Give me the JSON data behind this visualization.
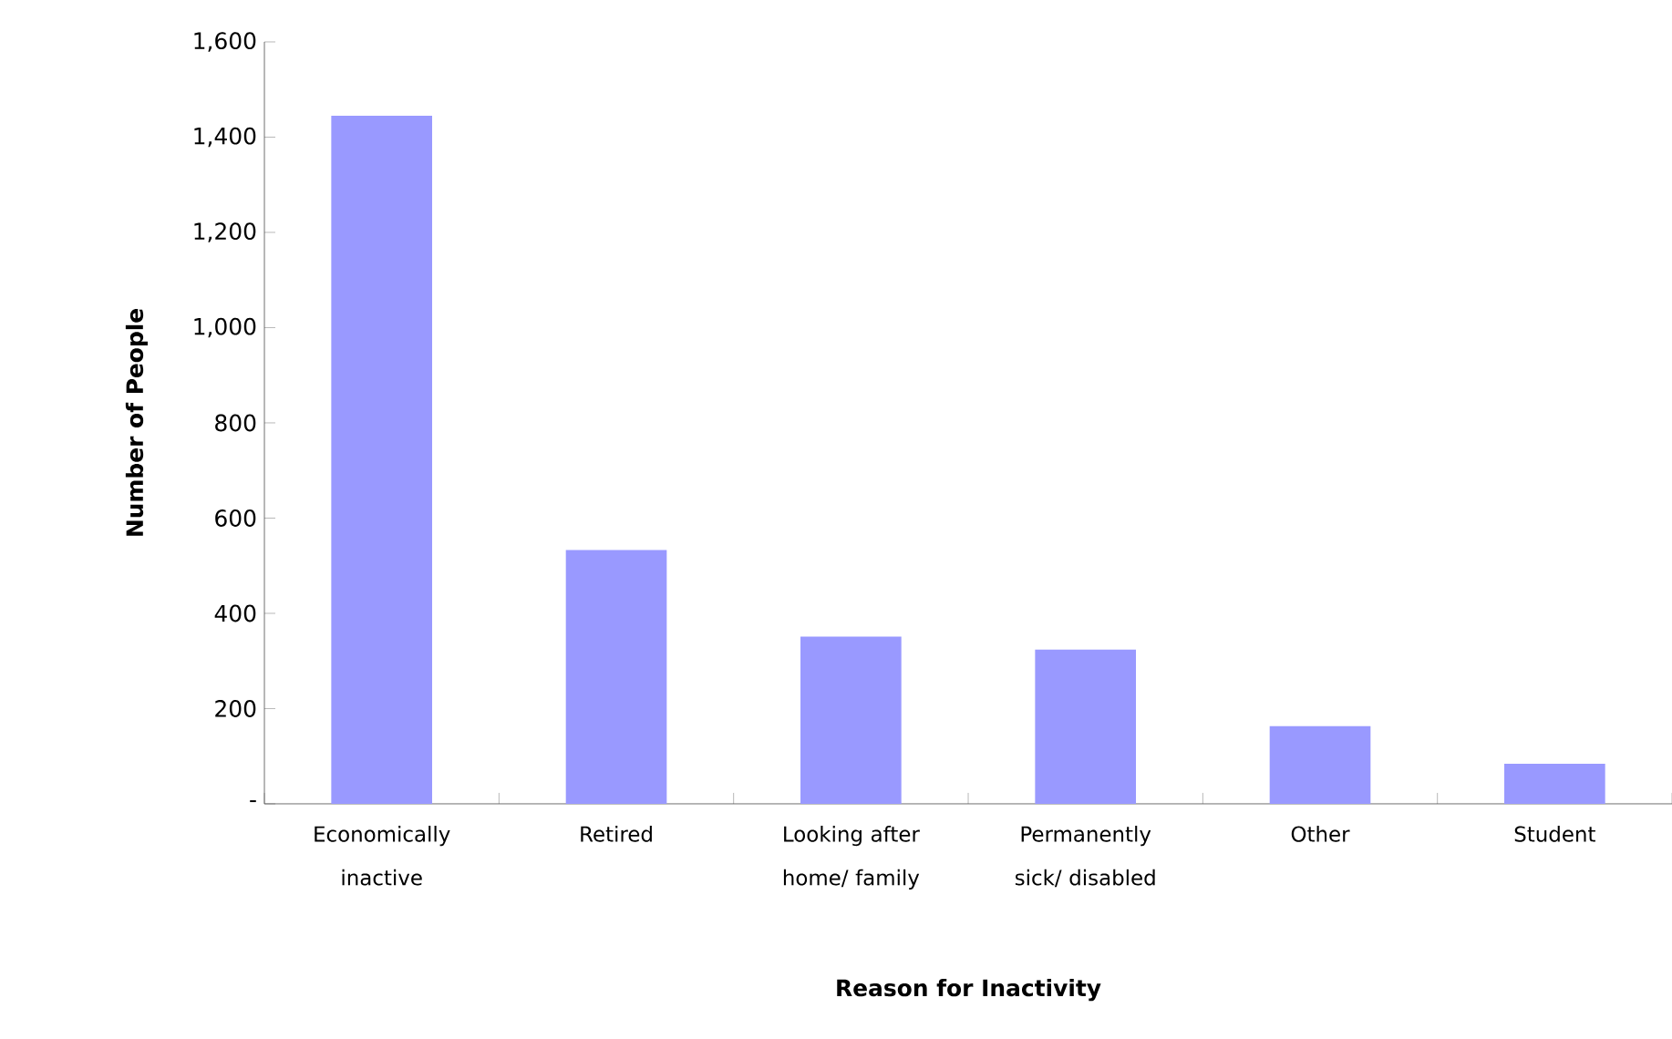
{
  "chart_data": {
    "type": "bar",
    "xlabel": "Reason for Inactivity",
    "ylabel": "Number of People",
    "categories": [
      "Economically inactive",
      "Retired",
      "Looking after home/ family",
      "Permanently sick/ disabled",
      "Other",
      "Student"
    ],
    "values": [
      1445,
      533,
      351,
      324,
      163,
      84
    ],
    "color": "#9999ff",
    "ylim": [
      0,
      1600
    ],
    "yticks": [
      {
        "value": 0,
        "label": "-"
      },
      200,
      400,
      600,
      800,
      {
        "value": 1000,
        "label": "1,000"
      },
      {
        "value": 1200,
        "label": "1,200"
      },
      {
        "value": 1400,
        "label": "1,400"
      },
      {
        "value": 1600,
        "label": "1,600"
      }
    ],
    "grid": false
  }
}
